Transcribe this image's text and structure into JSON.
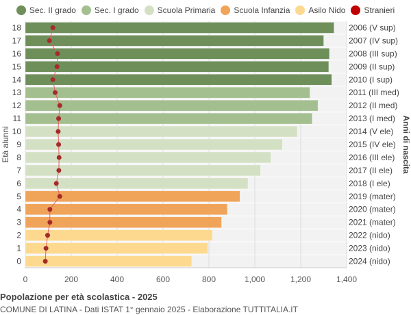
{
  "chart_data": {
    "type": "bar",
    "orientation": "horizontal",
    "title": "Popolazione per età scolastica - 2025",
    "subtitle": "COMUNE DI LATINA - Dati ISTAT 1° gennaio 2025 - Elaborazione TUTTITALIA.IT",
    "ylabel_left": "Età alunni",
    "ylabel_right": "Anni di nascita",
    "xlim": [
      0,
      1400
    ],
    "x_ticks": [
      0,
      200,
      400,
      600,
      800,
      1000,
      1200,
      1400
    ],
    "x_tick_labels": [
      "0",
      "200",
      "400",
      "600",
      "800",
      "1,000",
      "1,200",
      "1,400"
    ],
    "grid": true,
    "legend_position": "top",
    "legend": [
      {
        "name": "Sec. II grado",
        "color": "#6e8f5a"
      },
      {
        "name": "Sec. I grado",
        "color": "#a3bf8f"
      },
      {
        "name": "Scuola Primaria",
        "color": "#d4e0c4"
      },
      {
        "name": "Scuola Infanzia",
        "color": "#f0a45a"
      },
      {
        "name": "Asilo Nido",
        "color": "#fcd98f"
      },
      {
        "name": "Stranieri",
        "color": "#c00000"
      }
    ],
    "bars": [
      {
        "age": "18",
        "year": "2006 (V sup)",
        "value": 1345,
        "stranieri": 120,
        "group": 0
      },
      {
        "age": "17",
        "year": "2007 (IV sup)",
        "value": 1300,
        "stranieri": 105,
        "group": 0
      },
      {
        "age": "16",
        "year": "2008 (III sup)",
        "value": 1325,
        "stranieri": 140,
        "group": 0
      },
      {
        "age": "15",
        "year": "2009 (II sup)",
        "value": 1322,
        "stranieri": 138,
        "group": 0
      },
      {
        "age": "14",
        "year": "2010 (I sup)",
        "value": 1335,
        "stranieri": 120,
        "group": 0
      },
      {
        "age": "13",
        "year": "2011 (III med)",
        "value": 1240,
        "stranieri": 130,
        "group": 1
      },
      {
        "age": "12",
        "year": "2012 (II med)",
        "value": 1275,
        "stranieri": 150,
        "group": 1
      },
      {
        "age": "11",
        "year": "2013 (I med)",
        "value": 1250,
        "stranieri": 145,
        "group": 1
      },
      {
        "age": "10",
        "year": "2014 (V ele)",
        "value": 1185,
        "stranieri": 143,
        "group": 2
      },
      {
        "age": "9",
        "year": "2015 (IV ele)",
        "value": 1120,
        "stranieri": 145,
        "group": 2
      },
      {
        "age": "8",
        "year": "2016 (III ele)",
        "value": 1070,
        "stranieri": 147,
        "group": 2
      },
      {
        "age": "7",
        "year": "2017 (II ele)",
        "value": 1025,
        "stranieri": 146,
        "group": 2
      },
      {
        "age": "6",
        "year": "2018 (I ele)",
        "value": 970,
        "stranieri": 135,
        "group": 2
      },
      {
        "age": "5",
        "year": "2019 (mater)",
        "value": 935,
        "stranieri": 150,
        "group": 3
      },
      {
        "age": "4",
        "year": "2020 (mater)",
        "value": 880,
        "stranieri": 107,
        "group": 3
      },
      {
        "age": "3",
        "year": "2021 (mater)",
        "value": 855,
        "stranieri": 107,
        "group": 3
      },
      {
        "age": "2",
        "year": "2022 (nido)",
        "value": 815,
        "stranieri": 97,
        "group": 4
      },
      {
        "age": "1",
        "year": "2023 (nido)",
        "value": 795,
        "stranieri": 90,
        "group": 4
      },
      {
        "age": "0",
        "year": "2024 (nido)",
        "value": 725,
        "stranieri": 87,
        "group": 4
      }
    ]
  }
}
